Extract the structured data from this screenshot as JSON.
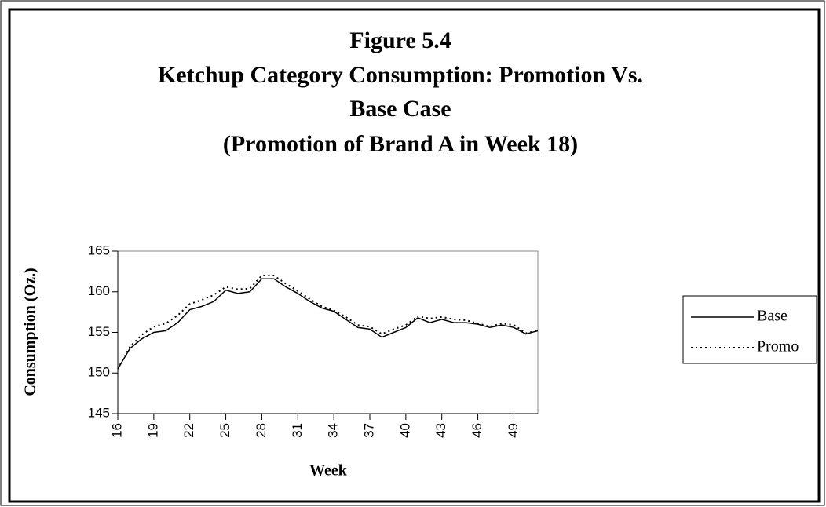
{
  "chart_data": {
    "type": "line",
    "title": "Figure 5.4",
    "subtitle": [
      "Ketchup Category Consumption: Promotion Vs.",
      "Base Case",
      "(Promotion of Brand A in Week 18)"
    ],
    "x_label": "Week",
    "y_label": "Consumption (Oz.)",
    "x": [
      16,
      17,
      18,
      19,
      20,
      21,
      22,
      23,
      24,
      25,
      26,
      27,
      28,
      29,
      30,
      31,
      32,
      33,
      34,
      35,
      36,
      37,
      38,
      39,
      40,
      41,
      42,
      43,
      44,
      45,
      46,
      47,
      48,
      49,
      50,
      51
    ],
    "series": [
      {
        "name": "Base",
        "color": "#000000",
        "style": "solid",
        "values": [
          150.5,
          153,
          154.2,
          155,
          155.2,
          156.2,
          157.8,
          158.2,
          158.8,
          160.2,
          159.8,
          160,
          161.6,
          161.6,
          160.6,
          159.8,
          158.8,
          158,
          157.6,
          156.6,
          155.6,
          155.4,
          154.4,
          155,
          155.6,
          156.8,
          156.2,
          156.6,
          156.2,
          156.2,
          156,
          155.6,
          155.9,
          155.6,
          154.8,
          155.2
        ]
      },
      {
        "name": "Promo",
        "color": "#000000",
        "style": "dotted",
        "values": [
          150.5,
          153.2,
          154.7,
          155.7,
          156.1,
          157.1,
          158.5,
          159,
          159.6,
          160.6,
          160.3,
          160.4,
          162,
          162,
          161,
          160.1,
          159.1,
          158.2,
          157.7,
          156.9,
          155.9,
          155.7,
          154.8,
          155.4,
          155.9,
          157,
          156.7,
          156.9,
          156.6,
          156.5,
          156.1,
          155.7,
          156.1,
          155.9,
          154.9,
          155.2
        ]
      }
    ],
    "xlim": [
      16,
      51
    ],
    "xticks": [
      16,
      19,
      22,
      25,
      28,
      31,
      34,
      37,
      40,
      43,
      46,
      49
    ],
    "ylim": [
      145,
      165
    ],
    "yticks": [
      145,
      150,
      155,
      160,
      165
    ],
    "grid": false,
    "legend": "right"
  }
}
